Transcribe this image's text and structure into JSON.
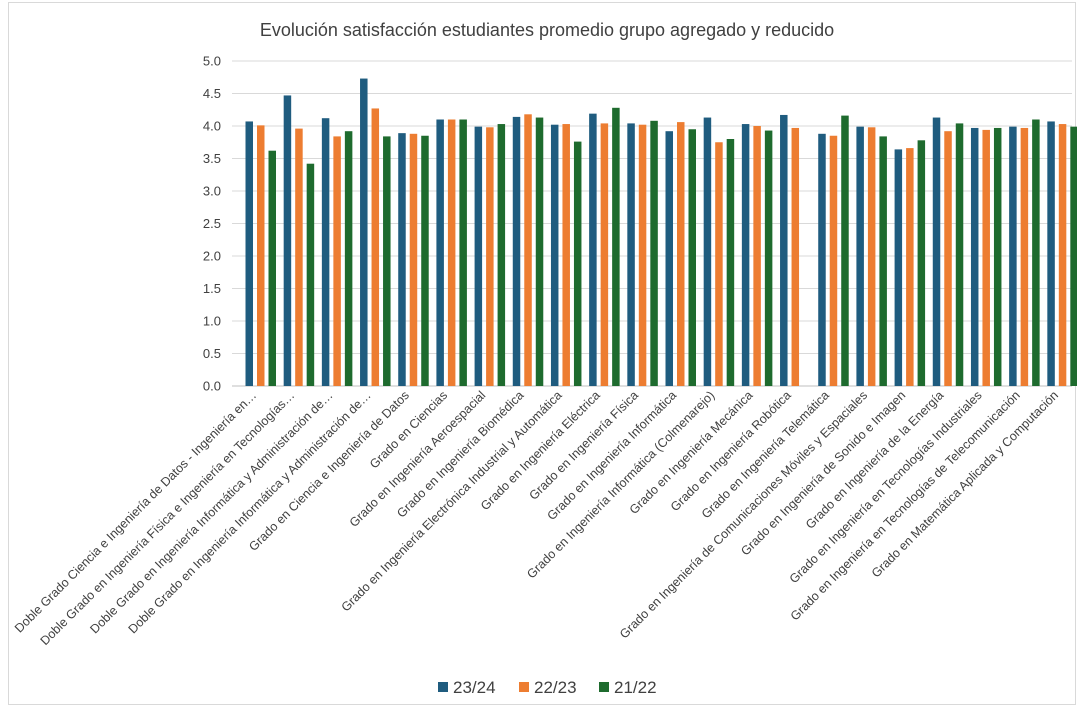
{
  "chart_data": {
    "type": "bar",
    "title": "Evolución satisfacción estudiantes promedio grupo agregado y reducido",
    "xlabel": "",
    "ylabel": "",
    "ylim": [
      0,
      5
    ],
    "yticks": [
      "0.0",
      "0.5",
      "1.0",
      "1.5",
      "2.0",
      "2.5",
      "3.0",
      "3.5",
      "4.0",
      "4.5",
      "5.0"
    ],
    "grid": true,
    "legend_position": "bottom",
    "categories": [
      "Doble Grado Ciencia e Ingeniería de Datos - Ingeniería en…",
      "Doble Grado en Ingeniería Física e Ingeniería en Tecnologías…",
      "Doble Grado en Ingeniería Informática y Administración de…",
      "Doble Grado en Ingeniería Informática y Administración de…",
      "Grado en Ciencia e Ingeniería de Datos",
      "Grado en Ciencias",
      "Grado en Ingeniería Aeroespacial",
      "Grado en Ingeniería Biomédica",
      "Grado en Ingeniería Electrónica Industrial y Automática",
      "Grado en Ingeniería Eléctrica",
      "Grado en Ingeniería Física",
      "Grado en Ingeniería Informática",
      "Grado en Ingeniería Informática (Colmenarejo)",
      "Grado en Ingeniería Mecánica",
      "Grado en Ingeniería Robótica",
      "Grado en Ingeniería Telemática",
      "Grado en Ingeniería de Comunicaciones Móviles y Espaciales",
      "Grado en Ingeniería de Sonido e Imagen",
      "Grado en Ingeniería de la Energía",
      "Grado en Ingeniería en Tecnologías Industriales",
      "Grado en Ingeniería en Tecnologías de Telecomunicación",
      "Grado en Matemática Aplicada y Computación"
    ],
    "series": [
      {
        "name": "23/24",
        "color": "#1f5c7f",
        "values": [
          4.07,
          4.47,
          4.12,
          4.73,
          3.89,
          4.1,
          3.99,
          4.14,
          4.02,
          4.19,
          4.04,
          3.92,
          4.13,
          4.03,
          4.17,
          3.88,
          3.99,
          3.64,
          4.13,
          3.97,
          3.99,
          4.07
        ]
      },
      {
        "name": "22/23",
        "color": "#ed7d31",
        "values": [
          4.01,
          3.96,
          3.84,
          4.27,
          3.88,
          4.1,
          3.98,
          4.18,
          4.03,
          4.04,
          4.02,
          4.06,
          3.75,
          4.0,
          3.97,
          3.85,
          3.98,
          3.66,
          3.92,
          3.94,
          3.97,
          4.03
        ]
      },
      {
        "name": "21/22",
        "color": "#1e6b2e",
        "values": [
          3.62,
          3.42,
          3.92,
          3.84,
          3.85,
          4.1,
          4.03,
          4.13,
          3.76,
          4.28,
          4.08,
          3.95,
          3.8,
          3.93,
          null,
          4.16,
          3.84,
          3.78,
          4.04,
          3.97,
          4.1,
          3.99
        ]
      }
    ]
  }
}
